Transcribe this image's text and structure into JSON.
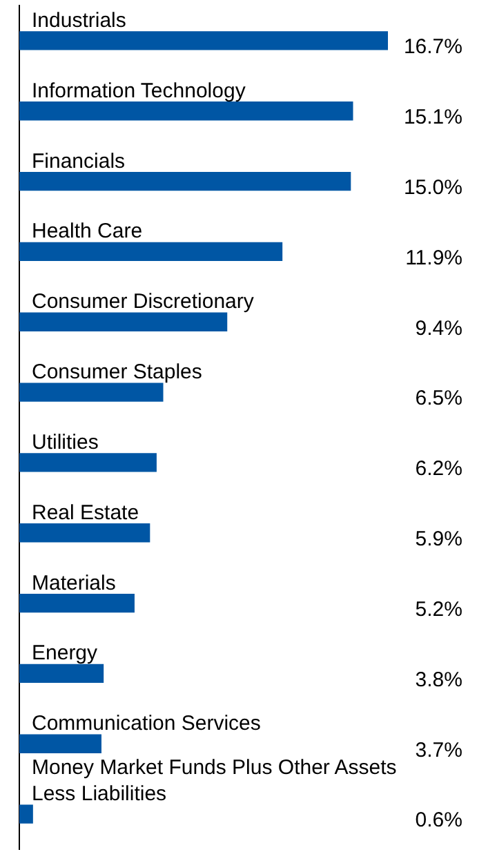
{
  "chart_data": {
    "type": "bar",
    "orientation": "horizontal",
    "data_labels": true,
    "grid": false,
    "legend": false,
    "categories": [
      "Industrials",
      "Information Technology",
      "Financials",
      "Health Care",
      "Consumer Discretionary",
      "Consumer Staples",
      "Utilities",
      "Real Estate",
      "Materials",
      "Energy",
      "Communication Services",
      "Money Market Funds Plus Other Assets Less Liabilities"
    ],
    "values": [
      16.7,
      15.1,
      15.0,
      11.9,
      9.4,
      6.5,
      6.2,
      5.9,
      5.2,
      3.8,
      3.7,
      0.6
    ],
    "value_labels": [
      "16.7%",
      "15.1%",
      "15.0%",
      "11.9%",
      "9.4%",
      "6.5%",
      "6.2%",
      "5.9%",
      "5.2%",
      "3.8%",
      "3.7%",
      "0.6%"
    ],
    "color": "#0056a4"
  }
}
